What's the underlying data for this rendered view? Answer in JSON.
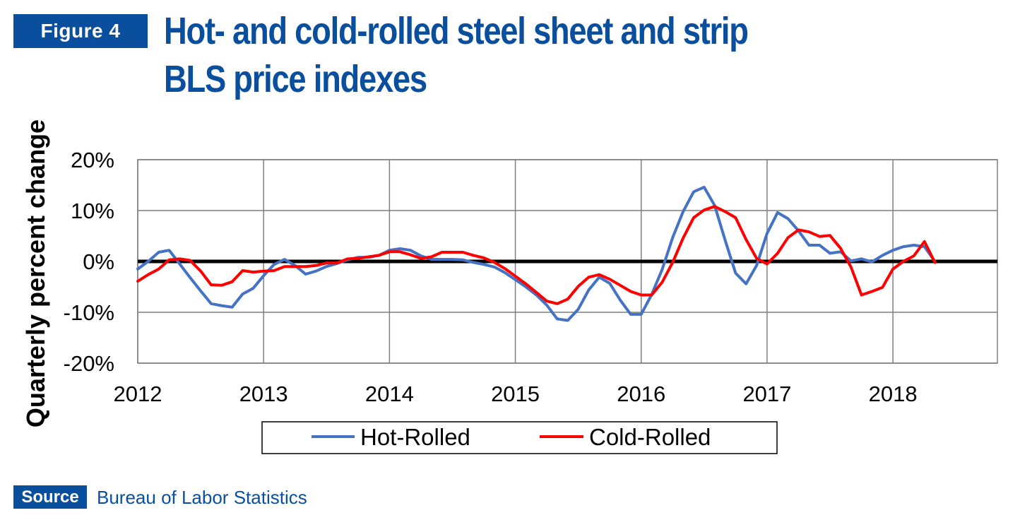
{
  "figure_label": "Figure 4",
  "title_lines": [
    "Hot- and cold-rolled steel sheet and strip",
    "BLS price indexes"
  ],
  "source_label": "Source",
  "source_text": "Bureau of Labor Statistics",
  "colors": {
    "brand_blue": "#0a4f9e",
    "hot_rolled": "#4472c4",
    "cold_rolled": "#ff0000",
    "zero_line": "#000000",
    "grid": "#7f7f7f"
  },
  "chart_data": {
    "type": "line",
    "title": "Hot- and cold-rolled steel sheet and strip BLS price indexes",
    "xlabel": "",
    "ylabel": "Quarterly percent change",
    "x_tick_labels": [
      "2012",
      "2013",
      "2014",
      "2015",
      "2016",
      "2017",
      "2018"
    ],
    "y_tick_labels": [
      "20%",
      "10%",
      "0%",
      "-10%",
      "-20%"
    ],
    "y_ticks": [
      20,
      10,
      0,
      -10,
      -20
    ],
    "ylim": [
      -20,
      20
    ],
    "xlim": [
      2012,
      2018.83
    ],
    "grid": true,
    "legend_position": "bottom",
    "x": [
      2012.0,
      2012.0833,
      2012.1667,
      2012.25,
      2012.3333,
      2012.4167,
      2012.5,
      2012.5833,
      2012.6667,
      2012.75,
      2012.8333,
      2012.9167,
      2013.0,
      2013.0833,
      2013.1667,
      2013.25,
      2013.3333,
      2013.4167,
      2013.5,
      2013.5833,
      2013.6667,
      2013.75,
      2013.8333,
      2013.9167,
      2014.0,
      2014.0833,
      2014.1667,
      2014.25,
      2014.3333,
      2014.4167,
      2014.5,
      2014.5833,
      2014.6667,
      2014.75,
      2014.8333,
      2014.9167,
      2015.0,
      2015.0833,
      2015.1667,
      2015.25,
      2015.3333,
      2015.4167,
      2015.5,
      2015.5833,
      2015.6667,
      2015.75,
      2015.8333,
      2015.9167,
      2016.0,
      2016.0833,
      2016.1667,
      2016.25,
      2016.3333,
      2016.4167,
      2016.5,
      2016.5833,
      2016.6667,
      2016.75,
      2016.8333,
      2016.9167,
      2017.0,
      2017.0833,
      2017.1667,
      2017.25,
      2017.3333,
      2017.4167,
      2017.5,
      2017.5833,
      2017.6667,
      2017.75,
      2017.8333,
      2017.9167,
      2018.0,
      2018.0833,
      2018.1667,
      2018.25,
      2018.3333
    ],
    "series": [
      {
        "name": "Hot-Rolled",
        "color": "#4472c4",
        "values": [
          -1.5,
          0,
          1.8,
          2.2,
          -0.5,
          -3.2,
          -5.8,
          -8.3,
          -8.7,
          -9.0,
          -6.4,
          -5.3,
          -2.8,
          -0.6,
          0.4,
          -0.8,
          -2.5,
          -1.9,
          -1.0,
          -0.4,
          0.3,
          0.8,
          0.8,
          1.2,
          2.2,
          2.5,
          2.2,
          1.1,
          0.4,
          0.4,
          0.4,
          0.3,
          -0.2,
          -0.6,
          -1.1,
          -2.2,
          -3.6,
          -5.0,
          -6.6,
          -8.6,
          -11.3,
          -11.6,
          -9.4,
          -5.6,
          -3.1,
          -4.3,
          -7.6,
          -10.4,
          -10.4,
          -6.5,
          -1.6,
          4.7,
          9.8,
          13.7,
          14.6,
          11.0,
          4.2,
          -2.3,
          -4.4,
          -0.8,
          5.5,
          9.6,
          8.4,
          6.0,
          3.2,
          3.2,
          1.6,
          1.9,
          0.1,
          0.5,
          -0.1,
          1.2,
          2.2,
          2.9,
          3.2,
          2.9,
          0
        ]
      },
      {
        "name": "Cold-Rolled",
        "color": "#ff0000",
        "values": [
          -3.9,
          -2.6,
          -1.5,
          0.3,
          0.5,
          0.2,
          -1.9,
          -4.6,
          -4.7,
          -4.0,
          -1.8,
          -2.1,
          -1.9,
          -1.8,
          -1.0,
          -1.0,
          -1.0,
          -0.8,
          -0.3,
          -0.3,
          0.5,
          0.6,
          0.9,
          1.2,
          1.9,
          1.9,
          1.3,
          0.6,
          0.9,
          1.8,
          1.8,
          1.8,
          1.2,
          0.7,
          -0.2,
          -1.4,
          -2.9,
          -4.4,
          -6.1,
          -7.8,
          -8.3,
          -7.4,
          -4.9,
          -3.1,
          -2.6,
          -3.5,
          -4.7,
          -5.9,
          -6.6,
          -6.6,
          -4.1,
          -0.2,
          4.6,
          8.6,
          10.1,
          10.8,
          9.8,
          8.6,
          4.3,
          0.6,
          -0.5,
          1.6,
          4.7,
          6.2,
          5.8,
          4.9,
          5.1,
          2.6,
          -1.1,
          -6.6,
          -5.9,
          -5.1,
          -1.5,
          0,
          1.1,
          3.9,
          -0.2
        ]
      }
    ]
  }
}
